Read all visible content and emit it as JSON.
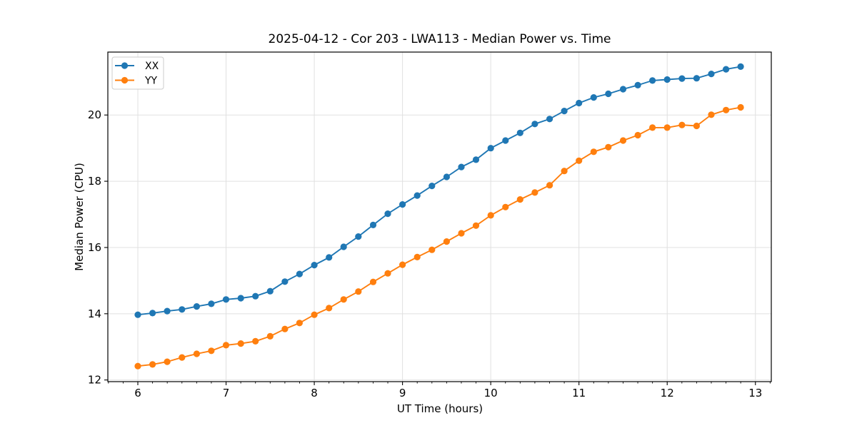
{
  "chart_data": {
    "type": "line",
    "title": "2025-04-12 - Cor 203 - LWA113 - Median Power vs. Time",
    "xlabel": "UT Time (hours)",
    "ylabel": "Median Power (CPU)",
    "xlim": [
      5.66,
      13.18
    ],
    "ylim": [
      11.95,
      21.9
    ],
    "x_ticks": [
      6,
      7,
      8,
      9,
      10,
      11,
      12,
      13
    ],
    "y_ticks": [
      12,
      14,
      16,
      18,
      20
    ],
    "x_minor_interval": 0.1667,
    "grid": true,
    "grid_color": "#e0e0e0",
    "spine_color": "#000000",
    "legend": {
      "position": "upper left",
      "entries": [
        "XX",
        "YY"
      ]
    },
    "x": [
      6.0,
      6.167,
      6.333,
      6.5,
      6.667,
      6.833,
      7.0,
      7.167,
      7.333,
      7.5,
      7.667,
      7.833,
      8.0,
      8.167,
      8.333,
      8.5,
      8.667,
      8.833,
      9.0,
      9.167,
      9.333,
      9.5,
      9.667,
      9.833,
      10.0,
      10.167,
      10.333,
      10.5,
      10.667,
      10.833,
      11.0,
      11.167,
      11.333,
      11.5,
      11.667,
      11.833,
      12.0,
      12.167,
      12.333,
      12.5,
      12.667,
      12.833
    ],
    "series": [
      {
        "name": "XX",
        "color": "#1f77b4",
        "values": [
          13.97,
          14.02,
          14.08,
          14.13,
          14.22,
          14.3,
          14.43,
          14.47,
          14.53,
          14.68,
          14.97,
          15.2,
          15.47,
          15.7,
          16.02,
          16.33,
          16.68,
          17.02,
          17.3,
          17.57,
          17.86,
          18.13,
          18.43,
          18.65,
          19.0,
          19.23,
          19.46,
          19.73,
          19.88,
          20.12,
          20.36,
          20.53,
          20.64,
          20.78,
          20.9,
          21.04,
          21.07,
          21.1,
          21.11,
          21.24,
          21.38,
          21.46
        ]
      },
      {
        "name": "YY",
        "color": "#ff7f0e",
        "values": [
          12.42,
          12.47,
          12.55,
          12.68,
          12.79,
          12.88,
          13.05,
          13.1,
          13.17,
          13.32,
          13.54,
          13.72,
          13.97,
          14.17,
          14.43,
          14.67,
          14.96,
          15.22,
          15.48,
          15.71,
          15.93,
          16.18,
          16.43,
          16.66,
          16.97,
          17.22,
          17.45,
          17.66,
          17.88,
          18.31,
          18.62,
          18.89,
          19.03,
          19.23,
          19.39,
          19.62,
          19.62,
          19.7,
          19.67,
          20.01,
          20.15,
          20.23
        ]
      }
    ]
  }
}
